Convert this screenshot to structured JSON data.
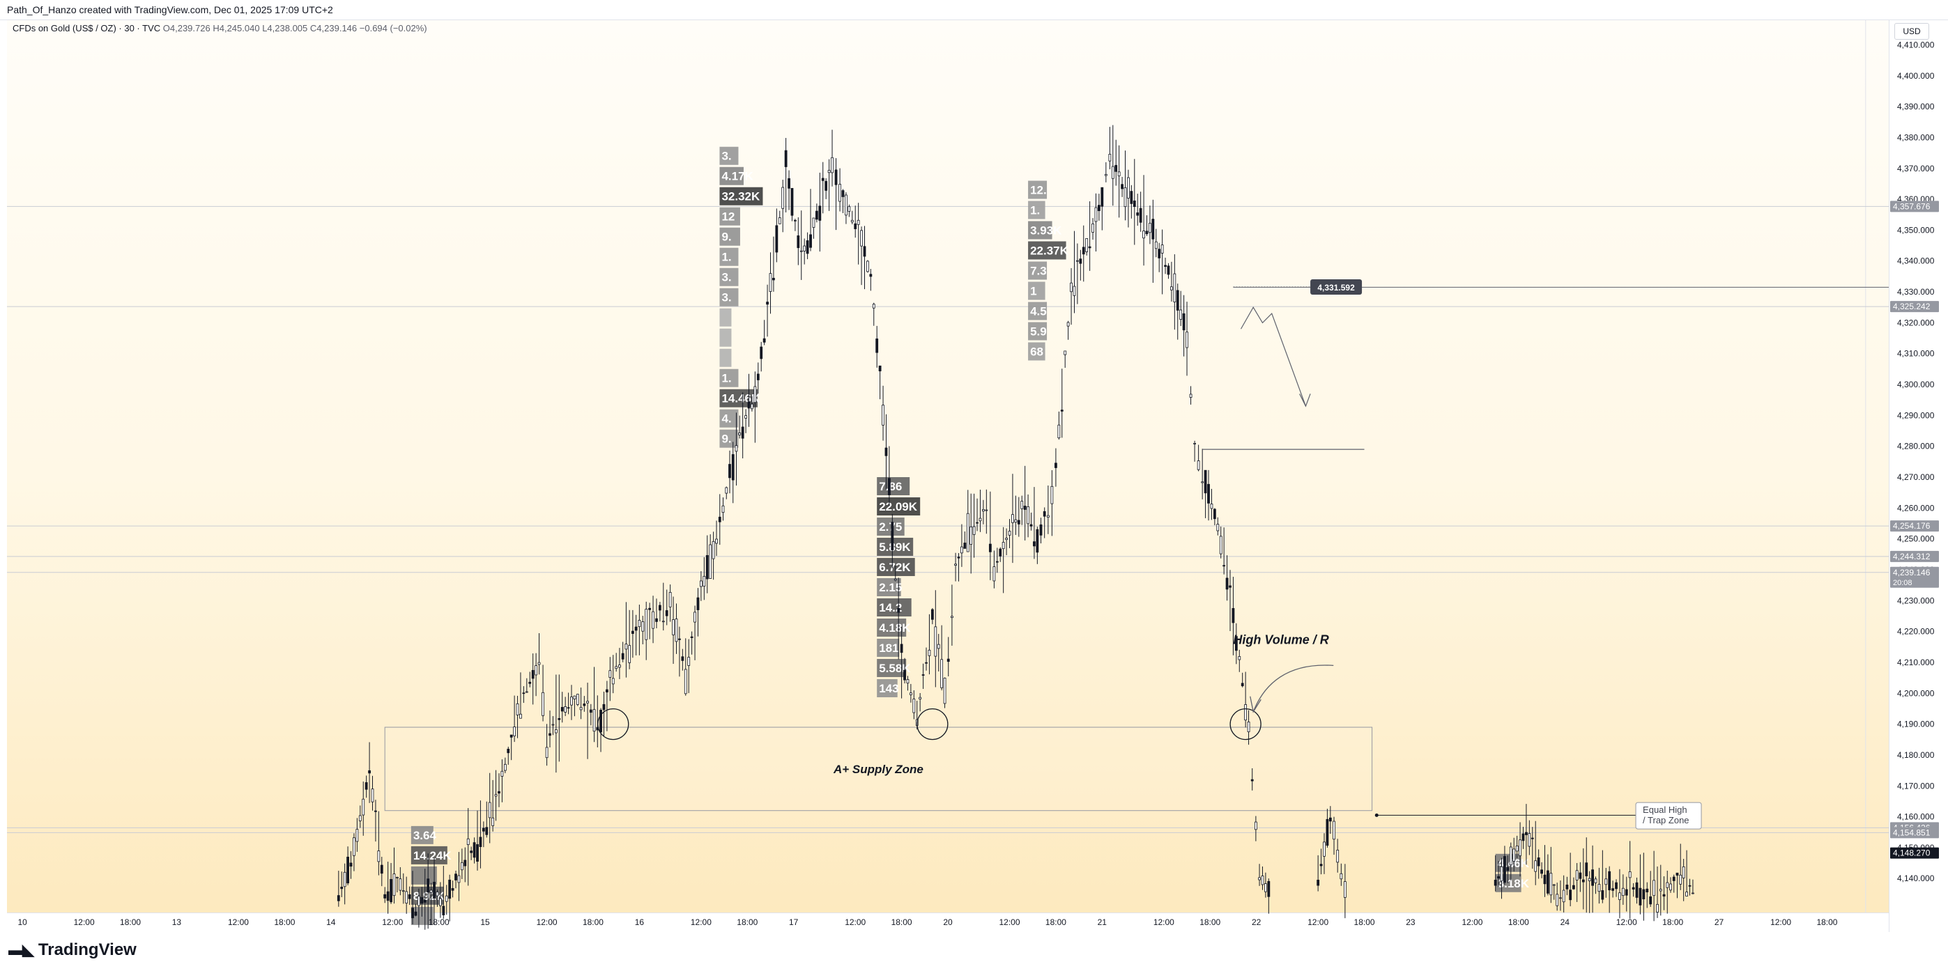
{
  "header": {
    "attribution": "Path_Of_Hanzo created with TradingView.com, Dec 01, 2025 17:09 UTC+2"
  },
  "legend": {
    "symbol": "CFDs on Gold (US$ / OZ) · 30 · TVC",
    "open": "O4,239.726",
    "high": "H4,245.040",
    "low": "L4,238.005",
    "close": "C4,239.146",
    "change": "−0.694 (−0.02%)"
  },
  "currency": "USD",
  "footer": {
    "brand": "TradingView",
    "logo_icon": "tradingview-logo-icon"
  },
  "colors": {
    "candle": "#131722",
    "annotation": "#5d606b",
    "zone_border": "#9598a1",
    "last_price_bg": "#131722"
  },
  "chart_data": {
    "type": "candlestick",
    "title": "CFDs on Gold (US$ / OZ) · 30 · TVC",
    "ylim": [
      4129,
      4418
    ],
    "y_ticks": [
      "4,140.000",
      "4,150.000",
      "4,160.000",
      "4,170.000",
      "4,180.000",
      "4,190.000",
      "4,200.000",
      "4,210.000",
      "4,220.000",
      "4,230.000",
      "4,240.000",
      "4,250.000",
      "4,260.000",
      "4,270.000",
      "4,280.000",
      "4,290.000",
      "4,300.000",
      "4,310.000",
      "4,320.000",
      "4,330.000",
      "4,340.000",
      "4,350.000",
      "4,360.000",
      "4,370.000",
      "4,380.000",
      "4,390.000",
      "4,400.000",
      "4,410.000"
    ],
    "x_ticks": [
      {
        "label": "10",
        "t": 0
      },
      {
        "label": "12:00",
        "t": 4
      },
      {
        "label": "18:00",
        "t": 7
      },
      {
        "label": "13",
        "t": 10
      },
      {
        "label": "12:00",
        "t": 14
      },
      {
        "label": "18:00",
        "t": 17
      },
      {
        "label": "14",
        "t": 20
      },
      {
        "label": "12:00",
        "t": 24
      },
      {
        "label": "18:00",
        "t": 27
      },
      {
        "label": "15",
        "t": 30
      },
      {
        "label": "12:00",
        "t": 34
      },
      {
        "label": "18:00",
        "t": 37
      },
      {
        "label": "16",
        "t": 40
      },
      {
        "label": "12:00",
        "t": 44
      },
      {
        "label": "18:00",
        "t": 47
      },
      {
        "label": "17",
        "t": 50
      },
      {
        "label": "12:00",
        "t": 54
      },
      {
        "label": "18:00",
        "t": 57
      },
      {
        "label": "20",
        "t": 60
      },
      {
        "label": "12:00",
        "t": 64
      },
      {
        "label": "18:00",
        "t": 67
      },
      {
        "label": "21",
        "t": 70
      },
      {
        "label": "12:00",
        "t": 74
      },
      {
        "label": "18:00",
        "t": 77
      },
      {
        "label": "22",
        "t": 80
      },
      {
        "label": "12:00",
        "t": 84
      },
      {
        "label": "18:00",
        "t": 87
      },
      {
        "label": "23",
        "t": 90
      },
      {
        "label": "12:00",
        "t": 94
      },
      {
        "label": "18:00",
        "t": 97
      },
      {
        "label": "24",
        "t": 100
      },
      {
        "label": "12:00",
        "t": 104
      },
      {
        "label": "18:00",
        "t": 107
      },
      {
        "label": "27",
        "t": 110
      },
      {
        "label": "12:00",
        "t": 114
      },
      {
        "label": "18:00",
        "t": 117
      }
    ],
    "t_range": [
      -1,
      121
    ],
    "price_path": [
      [
        20.5,
        4135
      ],
      [
        21.5,
        4148
      ],
      [
        22.5,
        4175
      ],
      [
        23.5,
        4135
      ],
      [
        24.5,
        4140
      ],
      [
        25.5,
        4130
      ],
      [
        26.5,
        4135
      ],
      [
        27.5,
        4132
      ],
      [
        28.5,
        4145
      ],
      [
        29.5,
        4150
      ],
      [
        30.5,
        4163
      ],
      [
        31.5,
        4180
      ],
      [
        32.5,
        4200
      ],
      [
        33.5,
        4210
      ],
      [
        34,
        4185
      ],
      [
        35,
        4195
      ],
      [
        36,
        4198
      ],
      [
        37.5,
        4190
      ],
      [
        38.5,
        4210
      ],
      [
        40,
        4220
      ],
      [
        42,
        4230
      ],
      [
        43,
        4205
      ],
      [
        44,
        4235
      ],
      [
        45,
        4250
      ],
      [
        46.5,
        4285
      ],
      [
        47.5,
        4295
      ],
      [
        48.5,
        4330
      ],
      [
        49.5,
        4370
      ],
      [
        50.5,
        4340
      ],
      [
        51.5,
        4355
      ],
      [
        52.5,
        4370
      ],
      [
        53,
        4362
      ],
      [
        54,
        4352
      ],
      [
        55,
        4335
      ],
      [
        56,
        4280
      ],
      [
        57,
        4210
      ],
      [
        58,
        4192
      ],
      [
        59,
        4225
      ],
      [
        59.8,
        4200
      ],
      [
        60.5,
        4240
      ],
      [
        61.5,
        4255
      ],
      [
        62.5,
        4260
      ],
      [
        63,
        4240
      ],
      [
        64,
        4252
      ],
      [
        65,
        4262
      ],
      [
        65.8,
        4250
      ],
      [
        66.5,
        4258
      ],
      [
        67,
        4275
      ],
      [
        68,
        4330
      ],
      [
        69,
        4345
      ],
      [
        70,
        4360
      ],
      [
        70.5,
        4375
      ],
      [
        71.5,
        4363
      ],
      [
        72.5,
        4355
      ],
      [
        73.5,
        4345
      ],
      [
        74.5,
        4335
      ],
      [
        75.5,
        4315
      ],
      [
        76,
        4280
      ],
      [
        76.5,
        4270
      ],
      [
        77.5,
        4255
      ],
      [
        78.5,
        4225
      ],
      [
        79.5,
        4190
      ],
      [
        80.2,
        4140
      ],
      [
        81,
        4135
      ]
    ],
    "price_path_2": [
      [
        84,
        4140
      ],
      [
        84.8,
        4160
      ],
      [
        85.5,
        4140
      ],
      [
        86,
        4135
      ]
    ],
    "price_path_3": [
      [
        95.5,
        4140
      ],
      [
        96.5,
        4145
      ],
      [
        97.5,
        4155
      ],
      [
        98.5,
        4143
      ],
      [
        99.5,
        4135
      ],
      [
        101,
        4140
      ],
      [
        102,
        4138
      ],
      [
        106,
        4135
      ],
      [
        107.5,
        4140
      ],
      [
        108.5,
        4136
      ]
    ],
    "price_labels": [
      {
        "text": "4,357.676",
        "price": 4357.676,
        "dark": false
      },
      {
        "text": "4,325.242",
        "price": 4325.242,
        "dark": false
      },
      {
        "text": "4,254.176",
        "price": 4254.176,
        "dark": false
      },
      {
        "text": "4,244.312",
        "price": 4244.312,
        "dark": false
      },
      {
        "text": "4,239.146",
        "price": 4239.146,
        "dark": false,
        "sub": "20:08"
      },
      {
        "text": "4,156.426",
        "price": 4156.426,
        "dark": false
      },
      {
        "text": "4,154.851",
        "price": 4154.851,
        "dark": false
      },
      {
        "text": "4,148.270",
        "price": 4148.27,
        "dark": true
      }
    ],
    "h_lines": [
      4357.676,
      4325.242,
      4254.176,
      4244.312,
      4239.146,
      4156.426,
      4154.851
    ],
    "annotations": {
      "supply_zone": {
        "label": "A+ Supply Zone",
        "t_from": 23.5,
        "t_to": 87.5,
        "p_top": 4189,
        "p_bottom": 4162
      },
      "high_volume": {
        "label": "High Volume / R"
      },
      "equal_high": {
        "line1": "Equal High",
        "line2": "/ Trap Zone"
      },
      "callout_price": {
        "text": "4,331.592",
        "price": 4331.592
      },
      "ray_price": 4331.5,
      "resistance_line": {
        "price": 4279,
        "t_from": 76.5,
        "t_to": 87
      },
      "circles": [
        {
          "t": 38.3,
          "price": 4190
        },
        {
          "t": 59,
          "price": 4190
        },
        {
          "t": 79.3,
          "price": 4190
        }
      ]
    },
    "volume_profiles": [
      {
        "t": 45.2,
        "rows": [
          {
            "text": "3.",
            "w": 0.3
          },
          {
            "text": "4.17K",
            "w": 0.45
          },
          {
            "text": "32.32K",
            "w": 1.0
          },
          {
            "text": "12",
            "w": 0.35
          },
          {
            "text": "9.",
            "w": 0.35
          },
          {
            "text": "1.",
            "w": 0.3
          },
          {
            "text": "3.",
            "w": 0.3
          },
          {
            "text": "3.",
            "w": 0.3
          },
          {
            "text": "",
            "w": 0.1
          },
          {
            "text": "",
            "w": 0.1
          },
          {
            "text": "",
            "w": 0.1
          },
          {
            "text": "1.",
            "w": 0.3
          },
          {
            "text": "14.46K",
            "w": 0.85
          },
          {
            "text": "4.",
            "w": 0.3
          },
          {
            "text": "9.",
            "w": 0.3
          }
        ]
      },
      {
        "t": 55.4,
        "rows": [
          {
            "text": "7.86",
            "w": 0.7
          },
          {
            "text": "22.09K",
            "w": 1.0
          },
          {
            "text": "2.75",
            "w": 0.55
          },
          {
            "text": "5.89K",
            "w": 0.8
          },
          {
            "text": "6.72K",
            "w": 0.85
          },
          {
            "text": "2.15",
            "w": 0.45
          },
          {
            "text": "14.2",
            "w": 0.75
          },
          {
            "text": "4.18K",
            "w": 0.6
          },
          {
            "text": "181",
            "w": 0.4
          },
          {
            "text": "5.58K",
            "w": 0.6
          },
          {
            "text": "143",
            "w": 0.35
          }
        ]
      },
      {
        "t": 65.2,
        "rows": [
          {
            "text": "12.",
            "w": 0.3
          },
          {
            "text": "1.",
            "w": 0.25
          },
          {
            "text": "3.93K",
            "w": 0.45
          },
          {
            "text": "22.37K",
            "w": 0.85
          },
          {
            "text": "7.3",
            "w": 0.3
          },
          {
            "text": "1",
            "w": 0.25
          },
          {
            "text": "4.5",
            "w": 0.3
          },
          {
            "text": "5.9",
            "w": 0.3
          },
          {
            "text": "68",
            "w": 0.25
          }
        ]
      },
      {
        "t": 25.2,
        "rows": [
          {
            "text": "3.64",
            "w": 0.4
          },
          {
            "text": "14.24K",
            "w": 0.8
          },
          {
            "text": "",
            "w": 0.5
          },
          {
            "text": "8.92K",
            "w": 0.7
          },
          {
            "text": "",
            "w": 0.4
          }
        ]
      },
      {
        "t": 95.5,
        "rows": [
          {
            "text": "4.46K",
            "w": 0.5
          },
          {
            "text": "3.18K",
            "w": 0.5
          }
        ]
      }
    ]
  }
}
